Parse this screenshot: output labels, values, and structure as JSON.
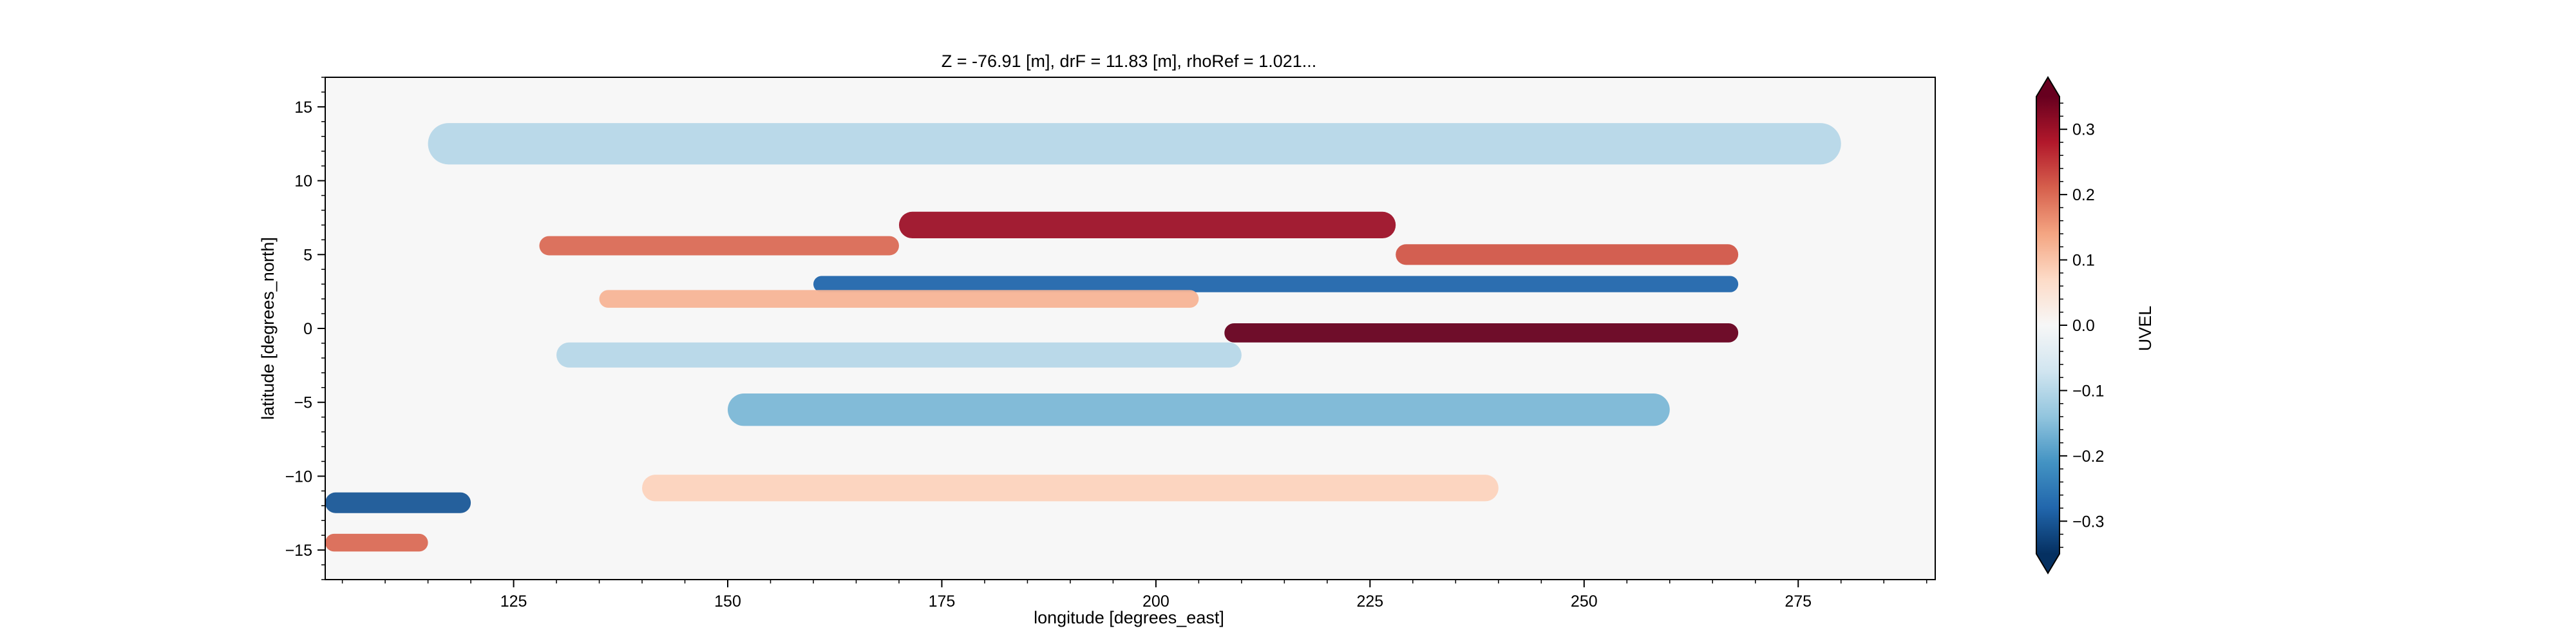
{
  "chart_data": {
    "type": "heatmap",
    "title": "Z = -76.91 [m], drF = 11.83 [m], rhoRef = 1.021...",
    "xlabel": "longitude [degrees_east]",
    "ylabel": "latitude [degrees_north]",
    "xlim": [
      103,
      291
    ],
    "ylim": [
      -17,
      17
    ],
    "x_ticks": [
      125,
      150,
      175,
      200,
      225,
      250,
      275
    ],
    "y_ticks": [
      -15,
      -10,
      -5,
      0,
      5,
      10,
      15
    ],
    "colorbar": {
      "label": "UVEL",
      "range": [
        -0.35,
        0.35
      ],
      "ticks": [
        -0.3,
        -0.2,
        -0.1,
        0.0,
        0.1,
        0.2,
        0.3
      ],
      "tick_labels": [
        "−0.3",
        "−0.2",
        "−0.1",
        "0.0",
        "0.1",
        "0.2",
        "0.3"
      ],
      "extend": "both",
      "colormap": "RdBu_r",
      "colors": [
        "#053061",
        "#2166ac",
        "#4393c3",
        "#92c5de",
        "#d1e5f0",
        "#f7f7f7",
        "#fddbc7",
        "#f4a582",
        "#d6604d",
        "#b2182b",
        "#67001f"
      ]
    },
    "land_color": "#f7f7f7",
    "features": [
      {
        "x0": 170,
        "x1": 228,
        "lat": 7.0,
        "width": 1.8,
        "value": 0.3
      },
      {
        "x0": 128,
        "x1": 170,
        "lat": 5.6,
        "width": 1.3,
        "value": 0.2
      },
      {
        "x0": 228,
        "x1": 268,
        "lat": 5.0,
        "width": 1.4,
        "value": 0.22
      },
      {
        "x0": 160,
        "x1": 268,
        "lat": 3.0,
        "width": 1.1,
        "value": -0.28
      },
      {
        "x0": 135,
        "x1": 205,
        "lat": 2.0,
        "width": 1.2,
        "value": 0.12
      },
      {
        "x0": 208,
        "x1": 268,
        "lat": -0.3,
        "width": 1.3,
        "value": 0.35
      },
      {
        "x0": 130,
        "x1": 210,
        "lat": -1.8,
        "width": 1.7,
        "value": -0.1
      },
      {
        "x0": 150,
        "x1": 260,
        "lat": -5.5,
        "width": 2.2,
        "value": -0.16
      },
      {
        "x0": 140,
        "x1": 240,
        "lat": -10.8,
        "width": 1.8,
        "value": 0.08
      },
      {
        "x0": 115,
        "x1": 280,
        "lat": 12.5,
        "width": 2.8,
        "value": -0.1
      },
      {
        "x0": 103,
        "x1": 120,
        "lat": -11.8,
        "width": 1.4,
        "value": -0.3
      },
      {
        "x0": 103,
        "x1": 115,
        "lat": -14.5,
        "width": 1.2,
        "value": 0.2
      }
    ]
  }
}
